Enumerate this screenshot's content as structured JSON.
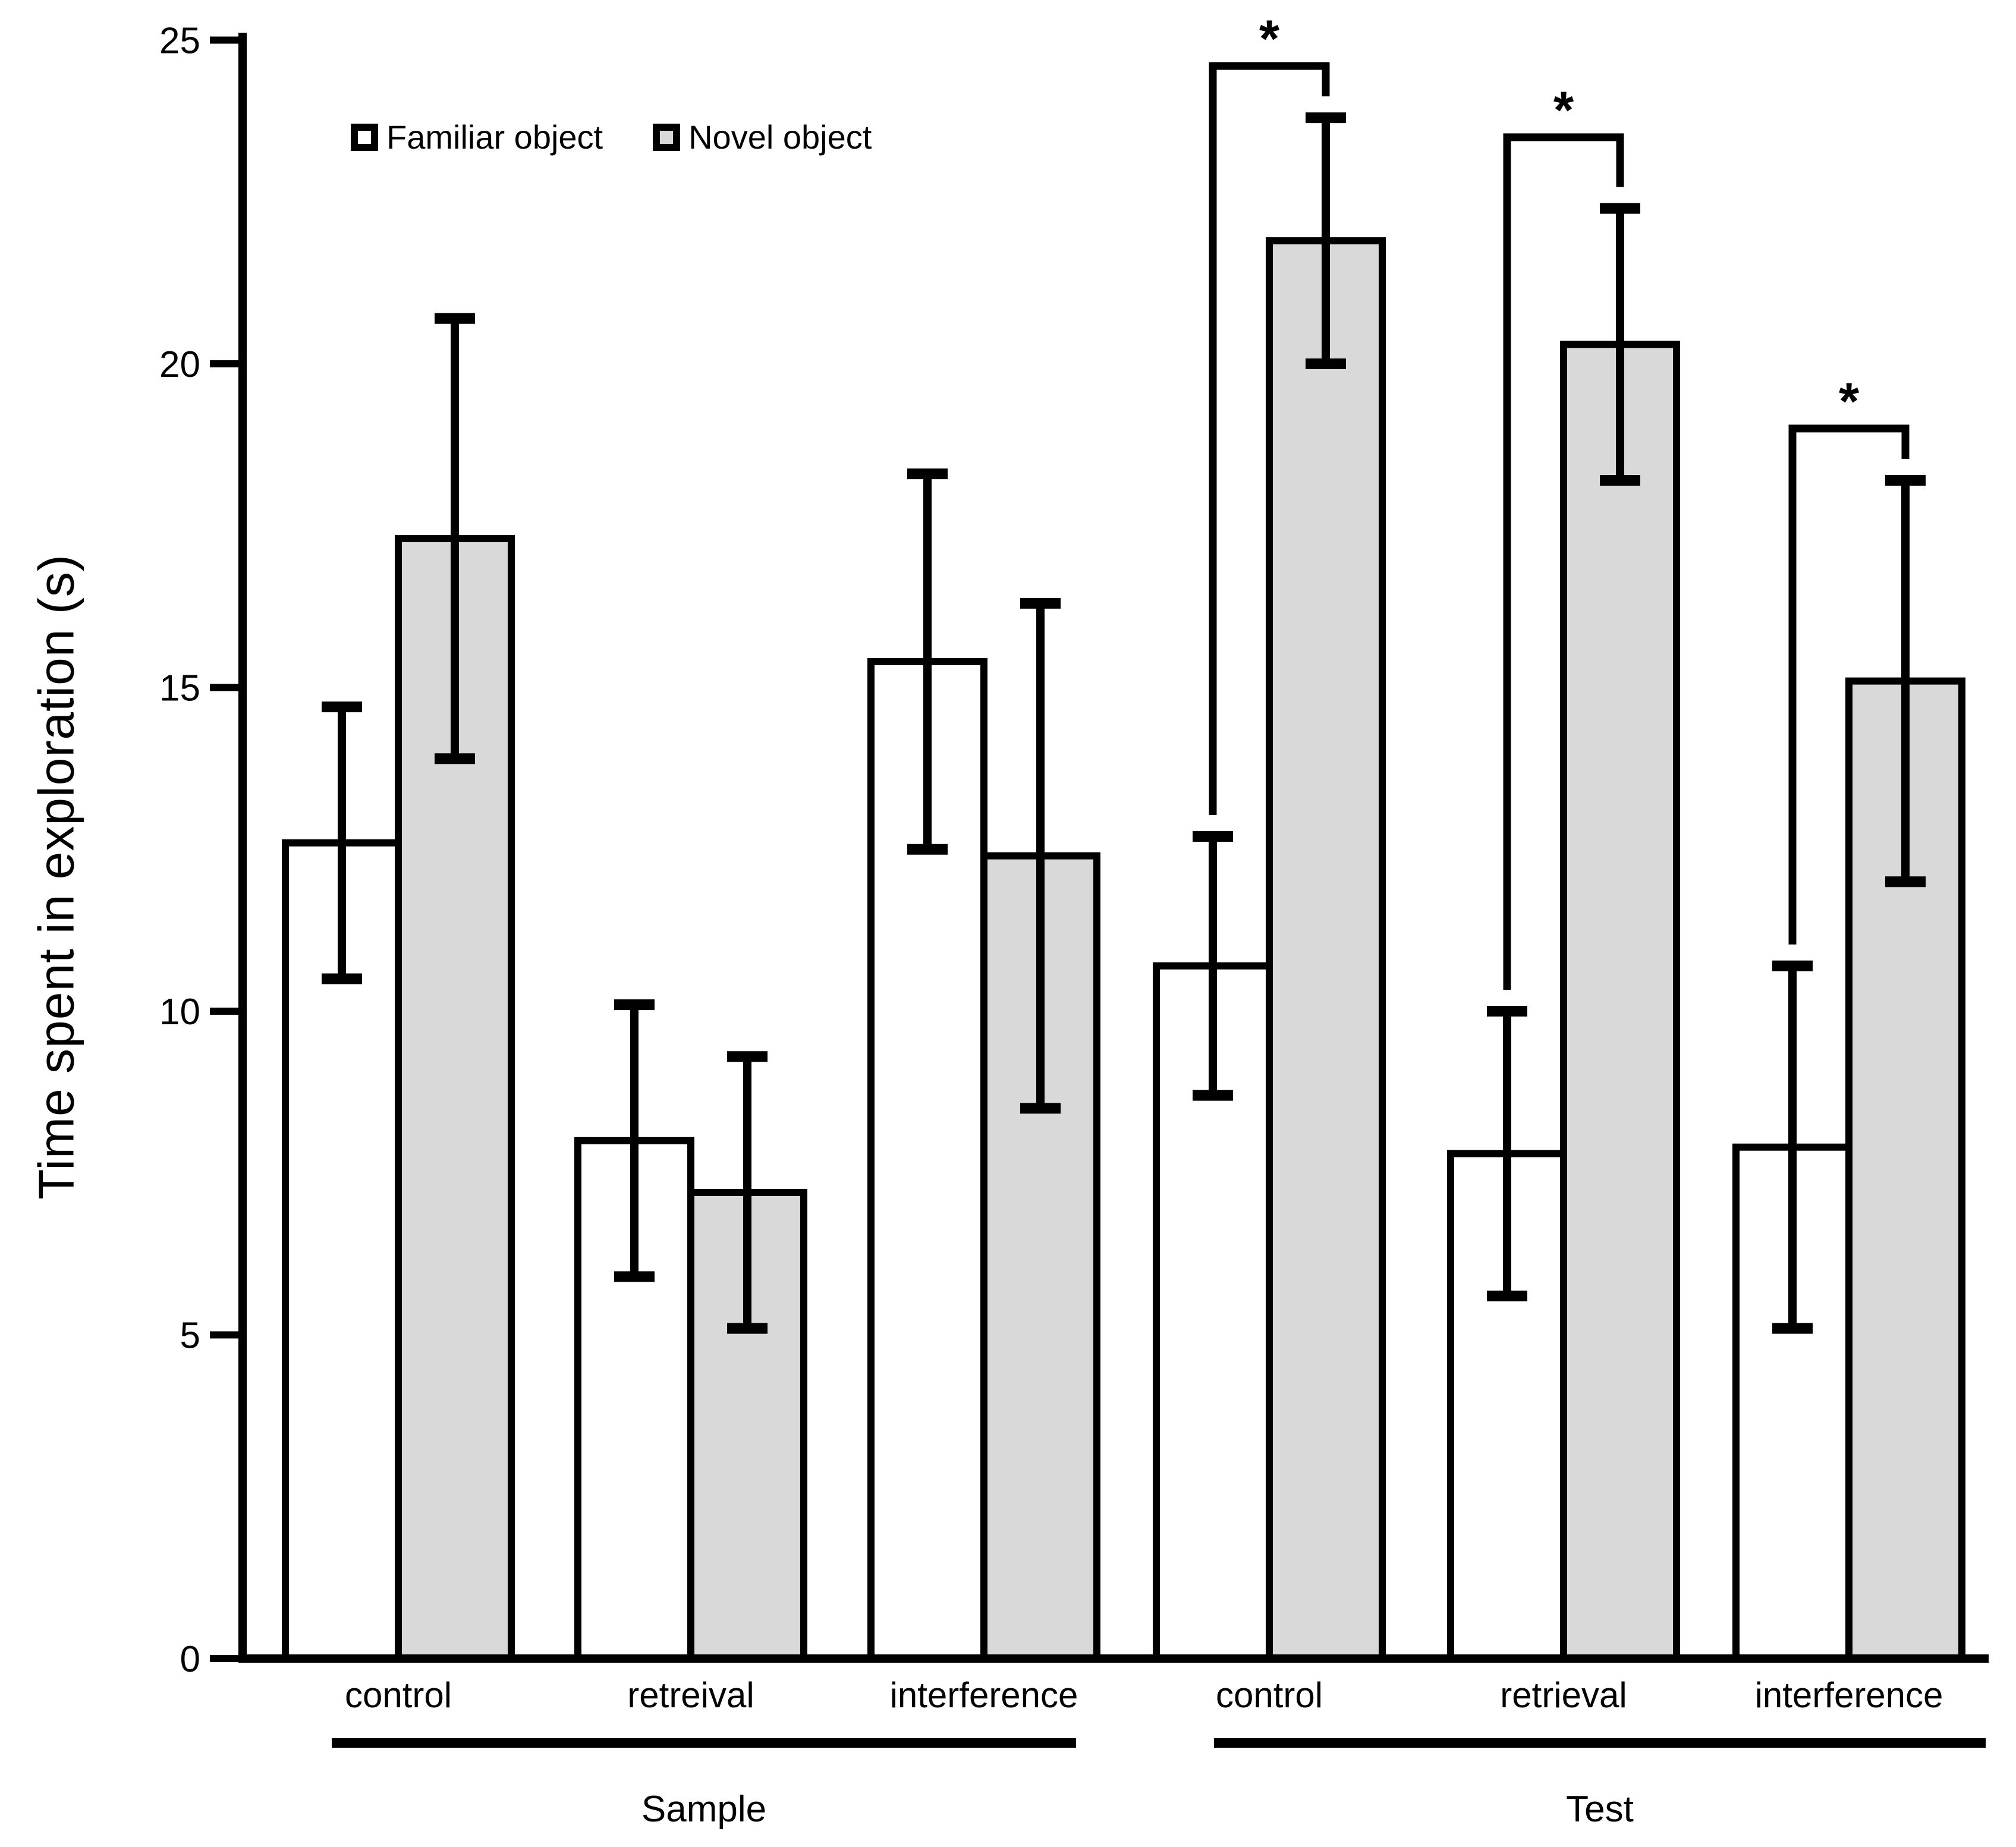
{
  "figure": {
    "background": "#ffffff"
  },
  "chart_data": {
    "type": "bar",
    "title": "",
    "ylabel": "Time spent in exploration (s)",
    "xlabel": "",
    "ylim": [
      0,
      25
    ],
    "yticks": [
      0,
      5,
      10,
      15,
      20,
      25
    ],
    "grid": false,
    "legend_position": "top-left inside plot",
    "series": [
      {
        "name": "Familiar object",
        "fill": "#ffffff",
        "values": [
          12.6,
          8.0,
          15.4,
          10.7,
          7.8,
          7.9
        ],
        "errors": [
          2.1,
          2.1,
          2.9,
          2.0,
          2.2,
          2.8
        ]
      },
      {
        "name": "Novel object",
        "fill": "#d9d9d9",
        "values": [
          17.3,
          7.2,
          12.4,
          21.9,
          20.3,
          15.1
        ],
        "errors": [
          3.4,
          2.1,
          3.9,
          1.9,
          2.1,
          3.1
        ]
      }
    ],
    "categories": [
      "control",
      "retreival",
      "interference",
      "control",
      "retrieval",
      "interference"
    ],
    "sections": [
      {
        "label": "Sample",
        "category_indexes": [
          0,
          1,
          2
        ]
      },
      {
        "label": "Test",
        "category_indexes": [
          3,
          4,
          5
        ]
      }
    ],
    "significance": [
      {
        "category_index": 3,
        "label": "*",
        "bracket_top": 24.6
      },
      {
        "category_index": 4,
        "label": "*",
        "bracket_top": 23.5
      },
      {
        "category_index": 5,
        "label": "*",
        "bracket_top": 19.0
      }
    ],
    "colors": {
      "bar_outline": "#000000",
      "error_bar": "#000000",
      "axis": "#000000",
      "familiar_fill": "#ffffff",
      "novel_fill": "#d9d9d9"
    }
  }
}
